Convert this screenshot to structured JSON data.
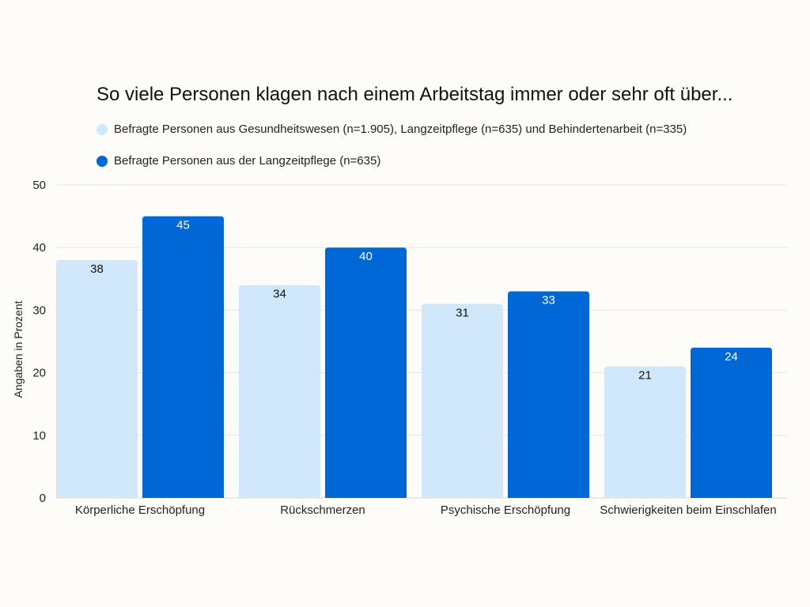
{
  "chart_data": {
    "type": "bar",
    "title": "So viele Personen klagen nach einem Arbeitstag immer oder sehr oft über...",
    "xlabel": "",
    "ylabel": "Angaben in Prozent",
    "ylim": [
      0,
      50
    ],
    "yticks": [
      0,
      10,
      20,
      30,
      40,
      50
    ],
    "grid": true,
    "legend_position": "top-left",
    "categories": [
      "Körperliche Erschöpfung",
      "Rückschmerzen",
      "Psychische Erschöpfung",
      "Schwierigkeiten beim Einschlafen"
    ],
    "series": [
      {
        "name": "Befragte Personen aus Gesundheitswesen (n=1.905), Langzeitpflege (n=635) und Behindertenarbeit (n=335)",
        "color": "#d0e8fa",
        "label_color": "#111111",
        "values": [
          38,
          34,
          31,
          21
        ]
      },
      {
        "name": "Befragte Personen aus der Langzeitpflege (n=635)",
        "color": "#0068d6",
        "label_color": "#ffffff",
        "values": [
          45,
          40,
          33,
          24
        ]
      }
    ]
  }
}
